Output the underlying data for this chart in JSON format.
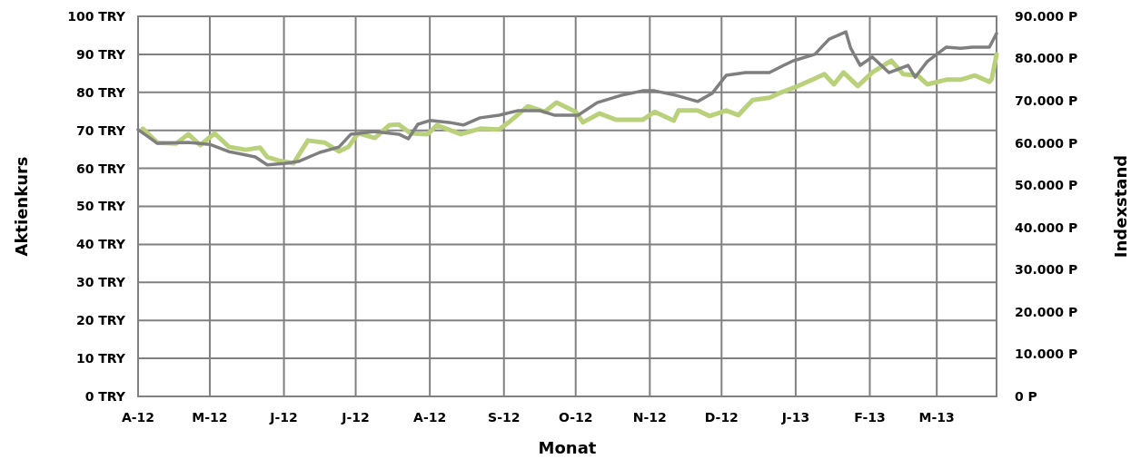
{
  "chart_data": {
    "type": "line",
    "xlabel": "Monat",
    "ylabel": "Aktienkurs",
    "y2label": "Indexstand",
    "xlim": [
      "2012-04-01",
      "2013-03-26"
    ],
    "xticks": [
      {
        "value": "2012-04-01",
        "label": "A-12"
      },
      {
        "value": "2012-05-01",
        "label": "M-12"
      },
      {
        "value": "2012-06-01",
        "label": "J-12"
      },
      {
        "value": "2012-07-01",
        "label": "J-12"
      },
      {
        "value": "2012-08-01",
        "label": "A-12"
      },
      {
        "value": "2012-09-01",
        "label": "S-12"
      },
      {
        "value": "2012-10-01",
        "label": "O-12"
      },
      {
        "value": "2012-11-01",
        "label": "N-12"
      },
      {
        "value": "2012-12-01",
        "label": "D-12"
      },
      {
        "value": "2013-01-01",
        "label": "J-13"
      },
      {
        "value": "2013-02-01",
        "label": "F-13"
      },
      {
        "value": "2013-03-01",
        "label": "M-13"
      }
    ],
    "ylim": [
      0,
      100
    ],
    "yticks": [
      {
        "value": 0,
        "label": "0 TRY"
      },
      {
        "value": 10,
        "label": "10 TRY"
      },
      {
        "value": 20,
        "label": "20 TRY"
      },
      {
        "value": 30,
        "label": "30 TRY"
      },
      {
        "value": 40,
        "label": "40 TRY"
      },
      {
        "value": 50,
        "label": "50 TRY"
      },
      {
        "value": 60,
        "label": "60 TRY"
      },
      {
        "value": 70,
        "label": "70 TRY"
      },
      {
        "value": 80,
        "label": "80 TRY"
      },
      {
        "value": 90,
        "label": "90 TRY"
      },
      {
        "value": 100,
        "label": "100 TRY"
      }
    ],
    "y2lim": [
      0,
      90000
    ],
    "y2ticks": [
      {
        "value": 0,
        "label": "0 P"
      },
      {
        "value": 10000,
        "label": "10.000 P"
      },
      {
        "value": 20000,
        "label": "20.000 P"
      },
      {
        "value": 30000,
        "label": "30.000 P"
      },
      {
        "value": 40000,
        "label": "40.000 P"
      },
      {
        "value": 50000,
        "label": "50.000 P"
      },
      {
        "value": 60000,
        "label": "60.000 P"
      },
      {
        "value": 70000,
        "label": "70.000 P"
      },
      {
        "value": 80000,
        "label": "80.000 P"
      },
      {
        "value": 90000,
        "label": "90.000 P"
      }
    ],
    "grid": true,
    "marker": "none",
    "line_style": "solid",
    "series": [
      {
        "color": "#b9d17a",
        "axis": "y2",
        "x": [
          "2012-04-03",
          "2012-04-09",
          "2012-04-17",
          "2012-04-22",
          "2012-04-27",
          "2012-05-03",
          "2012-05-09",
          "2012-05-16",
          "2012-05-22",
          "2012-05-25",
          "2012-05-30",
          "2012-06-05",
          "2012-06-11",
          "2012-06-18",
          "2012-06-24",
          "2012-06-28",
          "2012-07-02",
          "2012-07-09",
          "2012-07-15",
          "2012-07-19",
          "2012-07-24",
          "2012-07-31",
          "2012-08-04",
          "2012-08-14",
          "2012-08-22",
          "2012-08-30",
          "2012-09-03",
          "2012-09-11",
          "2012-09-18",
          "2012-09-23",
          "2012-10-01",
          "2012-10-04",
          "2012-10-11",
          "2012-10-18",
          "2012-10-29",
          "2012-11-03",
          "2012-11-11",
          "2012-11-13",
          "2012-11-21",
          "2012-11-26",
          "2012-12-03",
          "2012-12-08",
          "2012-12-14",
          "2012-12-21",
          "2012-12-26",
          "2013-01-02",
          "2013-01-08",
          "2013-01-13",
          "2013-01-17",
          "2013-01-21",
          "2013-01-27",
          "2013-02-02",
          "2013-02-10",
          "2013-02-15",
          "2013-02-21",
          "2013-02-25",
          "2013-03-05",
          "2013-03-11",
          "2013-03-17",
          "2013-03-23",
          "2013-03-24",
          "2013-03-26"
        ],
        "values": [
          63400,
          60100,
          59900,
          62100,
          59500,
          62300,
          59100,
          58400,
          58900,
          56700,
          55800,
          55200,
          60600,
          60100,
          58000,
          59100,
          62300,
          61200,
          64200,
          64400,
          62300,
          62100,
          64200,
          62100,
          63400,
          63200,
          64900,
          68700,
          67400,
          69600,
          67400,
          64900,
          67000,
          65500,
          65500,
          67400,
          65300,
          67700,
          67700,
          66400,
          67700,
          66600,
          70200,
          70700,
          72000,
          73500,
          75000,
          76300,
          73900,
          76700,
          73500,
          76700,
          79500,
          76300,
          76000,
          73900,
          75000,
          75000,
          76000,
          74500,
          75200,
          81000
        ]
      },
      {
        "color": "#7f7f7f",
        "x": [
          "2012-04-01",
          "2012-04-09",
          "2012-04-22",
          "2012-05-01",
          "2012-05-09",
          "2012-05-20",
          "2012-05-25",
          "2012-06-01",
          "2012-06-07",
          "2012-06-16",
          "2012-06-24",
          "2012-06-29",
          "2012-07-09",
          "2012-07-19",
          "2012-07-23",
          "2012-07-27",
          "2012-08-01",
          "2012-08-09",
          "2012-08-15",
          "2012-08-22",
          "2012-08-30",
          "2012-09-07",
          "2012-09-16",
          "2012-09-22",
          "2012-10-02",
          "2012-10-10",
          "2012-10-20",
          "2012-10-29",
          "2012-11-03",
          "2012-11-12",
          "2012-11-21",
          "2012-11-27",
          "2012-12-03",
          "2012-12-11",
          "2012-12-21",
          "2012-12-27",
          "2012-12-31",
          "2013-01-09",
          "2013-01-15",
          "2013-01-22",
          "2013-01-24",
          "2013-01-28",
          "2013-02-02",
          "2013-02-09",
          "2013-02-17",
          "2013-02-20",
          "2013-02-25",
          "2013-03-05",
          "2013-03-11",
          "2013-03-16",
          "2013-03-23",
          "2013-03-26"
        ],
        "values": [
          70.2,
          66.6,
          66.8,
          66.3,
          64.4,
          63.0,
          60.9,
          61.3,
          61.8,
          64.2,
          65.6,
          69.0,
          69.7,
          69.0,
          67.8,
          71.6,
          72.6,
          72.1,
          71.4,
          73.3,
          74.0,
          75.2,
          75.2,
          74.0,
          74.0,
          77.3,
          79.2,
          80.4,
          80.4,
          79.2,
          77.6,
          79.7,
          84.5,
          85.2,
          85.2,
          87.1,
          88.3,
          90.0,
          94.0,
          95.9,
          91.6,
          87.1,
          89.3,
          85.2,
          87.1,
          84.0,
          88.1,
          91.9,
          91.6,
          91.9,
          91.9,
          95.5
        ]
      }
    ]
  }
}
